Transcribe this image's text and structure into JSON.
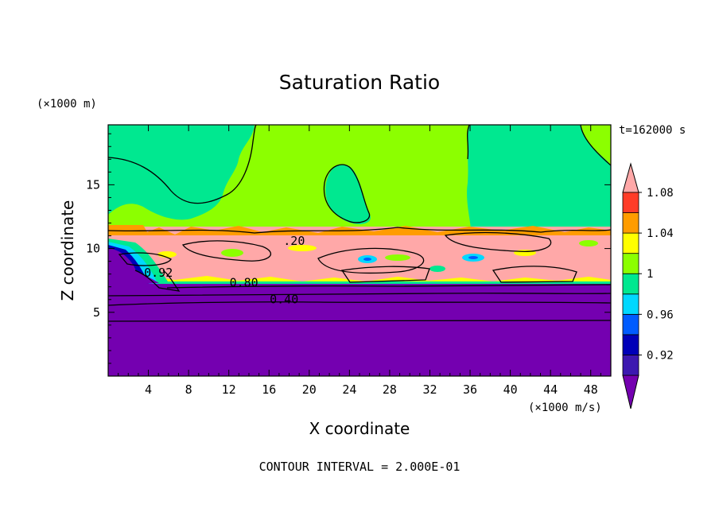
{
  "chart_data": {
    "type": "heatmap",
    "title": "Saturation Ratio",
    "xlabel": "X coordinate",
    "ylabel": "Z coordinate",
    "x_unit": "(×1000 m/s)",
    "y_unit": "(×1000 m)",
    "time_label": "t=162000 s",
    "footer": "CONTOUR INTERVAL = 2.000E-01",
    "xlim": [
      0,
      50
    ],
    "ylim": [
      0,
      19.7
    ],
    "x_ticks": [
      4,
      8,
      12,
      16,
      20,
      24,
      28,
      32,
      36,
      40,
      44,
      48
    ],
    "y_ticks": [
      5,
      10,
      15
    ],
    "contour_labels": [
      {
        "text": "0.40",
        "x": 17.5,
        "z": 5.7
      },
      {
        "text": "0.80",
        "x": 13.5,
        "z": 7.0
      },
      {
        "text": "0.92",
        "x": 5.0,
        "z": 7.8
      },
      {
        "text": ".20",
        "x": 18.5,
        "z": 10.3
      }
    ],
    "colorbar": {
      "levels": [
        0.92,
        0.94,
        0.96,
        0.98,
        1.0,
        1.02,
        1.04,
        1.06,
        1.08
      ],
      "tick_labels": [
        "0.92",
        "0.96",
        "1",
        "1.04",
        "1.08"
      ],
      "colors": [
        "#7400b0",
        "#3c18b0",
        "#0000b8",
        "#005cff",
        "#00d8ff",
        "#00e890",
        "#8cff00",
        "#ffff00",
        "#ff9c00",
        "#ff3c28",
        "#ffa8a8"
      ]
    },
    "layers": [
      {
        "band": "<0.92",
        "z_range": [
          0,
          7.2
        ]
      },
      {
        "band": "1.00-1.02",
        "z_range": [
          12,
          19.7
        ]
      },
      {
        "band": ">1.08",
        "z_range": [
          7.2,
          12
        ]
      }
    ]
  }
}
